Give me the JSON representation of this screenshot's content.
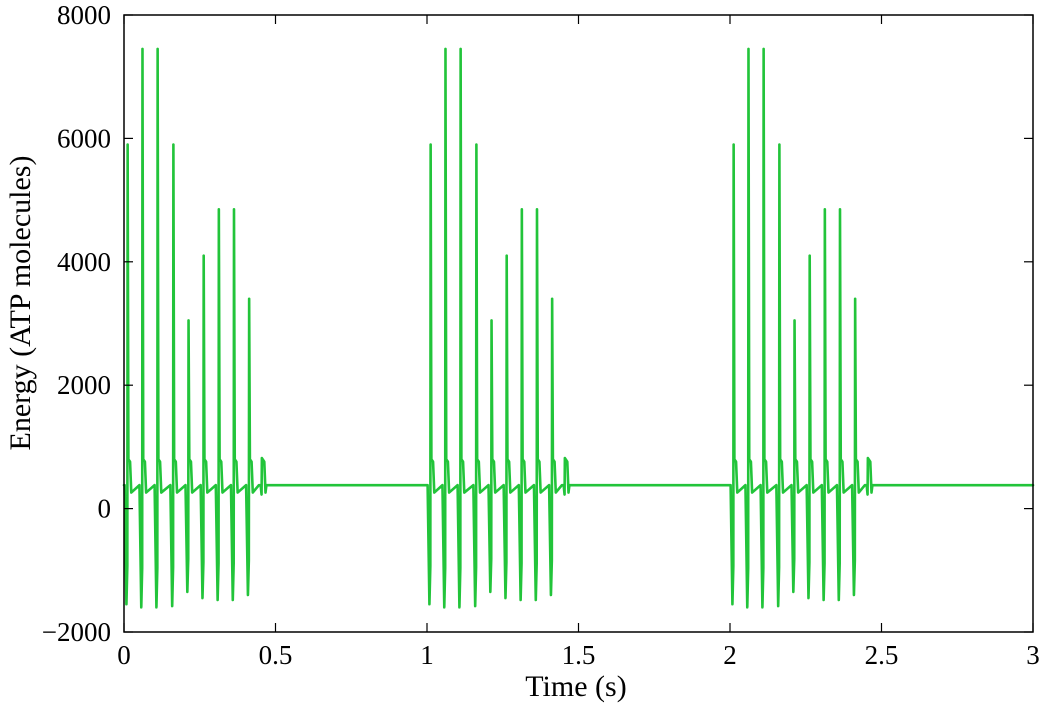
{
  "chart_data": {
    "type": "line",
    "title": "",
    "xlabel": "Time (s)",
    "ylabel": "Energy (ATP molecules)",
    "xlim": [
      0,
      3
    ],
    "ylim": [
      -2000,
      8000
    ],
    "x_ticks": [
      0,
      0.5,
      1,
      1.5,
      2,
      2.5,
      3
    ],
    "x_tick_labels": [
      "0",
      "0.5",
      "1",
      "1.5",
      "2",
      "2.5",
      "3"
    ],
    "y_ticks": [
      -2000,
      0,
      2000,
      4000,
      6000,
      8000
    ],
    "y_tick_labels": [
      "−2000",
      "0",
      "2000",
      "4000",
      "6000",
      "8000"
    ],
    "grid": false,
    "legend": "none",
    "baseline": 380,
    "burst_starts": [
      0,
      1.0,
      2.0
    ],
    "burst_end_offset": 0.47,
    "series": [
      {
        "color": "#22c43a",
        "spikes": [
          {
            "t": 0.012,
            "peak": 5900,
            "trough": -1550
          },
          {
            "t": 0.061,
            "peak": 7450,
            "trough": -1600
          },
          {
            "t": 0.111,
            "peak": 7450,
            "trough": -1600
          },
          {
            "t": 0.163,
            "peak": 5900,
            "trough": -1580
          },
          {
            "t": 0.213,
            "peak": 3050,
            "trough": -1350
          },
          {
            "t": 0.263,
            "peak": 4100,
            "trough": -1450
          },
          {
            "t": 0.313,
            "peak": 4850,
            "trough": -1480
          },
          {
            "t": 0.363,
            "peak": 4850,
            "trough": -1480
          },
          {
            "t": 0.413,
            "peak": 3400,
            "trough": -1400
          },
          {
            "t": 0.455,
            "peak": 820,
            "trough": 380
          }
        ]
      }
    ]
  }
}
